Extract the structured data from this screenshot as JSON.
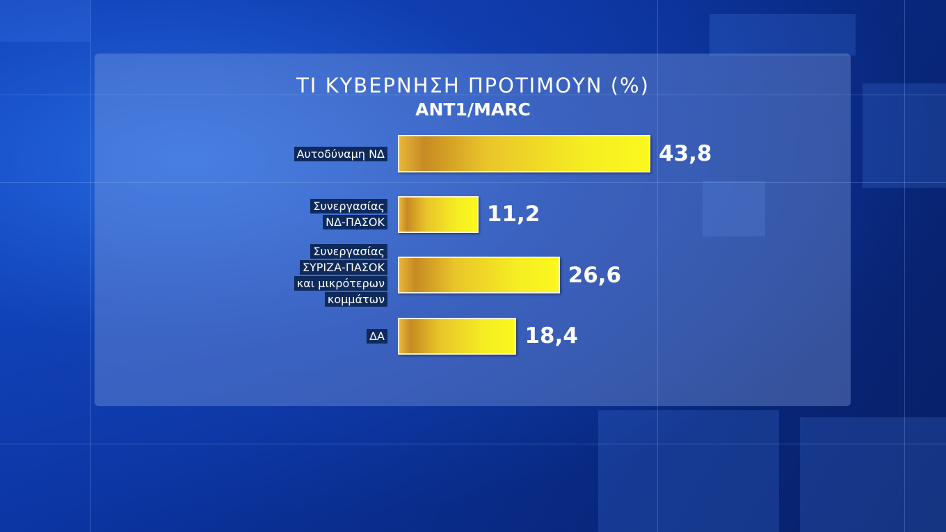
{
  "chart_data": {
    "type": "bar",
    "title": "ΤΙ ΚΥΒΕΡΝΗΣΗ ΠΡΟΤΙΜΟΥΝ (%)",
    "subtitle": "ANT1/MARC",
    "categories": [
      "Αυτοδύναμη ΝΔ",
      "Συνεργασίας\nΝΔ-ΠΑΣΟΚ",
      "Συνεργασίας\nΣΥΡΙΖΑ-ΠΑΣΟΚ\nκαι μικρότερων\nκομμάτων",
      "ΔΑ"
    ],
    "values": [
      43.8,
      11.2,
      26.6,
      18.4
    ],
    "value_labels": [
      "43,8",
      "11,2",
      "26,6",
      "18,4"
    ],
    "color": "#f6ee22"
  }
}
